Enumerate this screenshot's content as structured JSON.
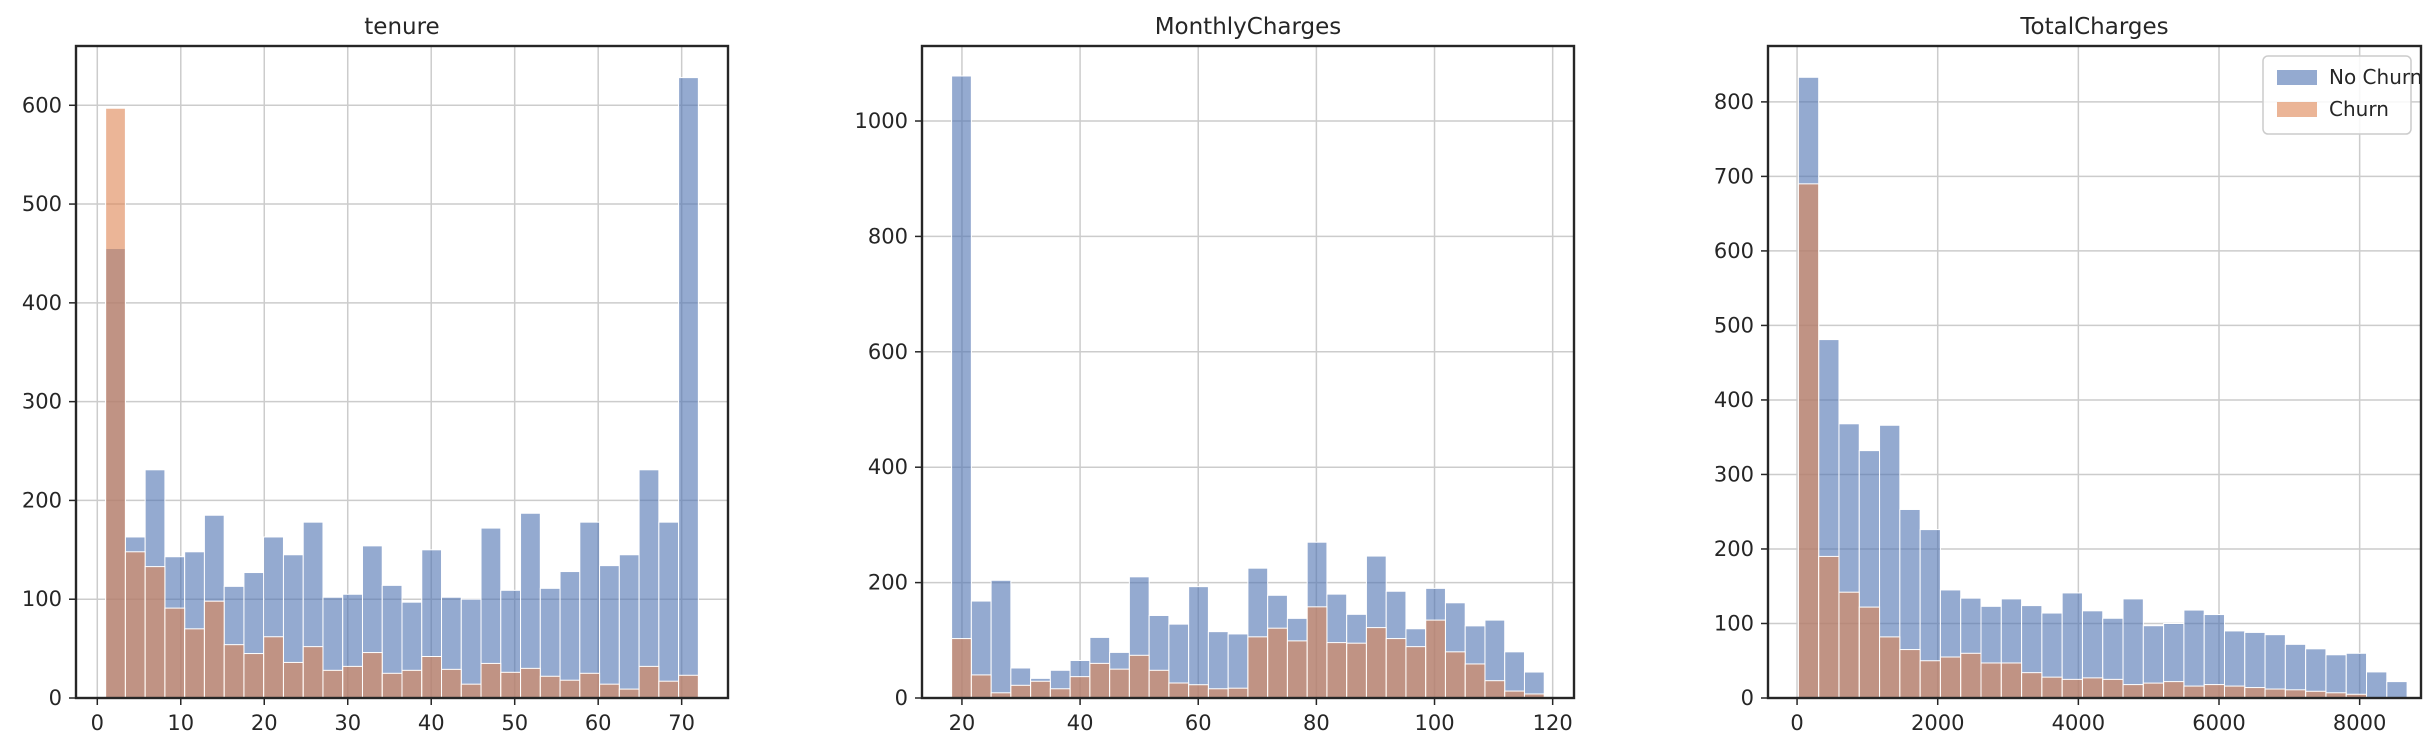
{
  "chart_data": [
    {
      "type": "bar",
      "title": "tenure",
      "xlabel": "",
      "ylabel": "",
      "xlim": [
        -2.55,
        75.55
      ],
      "ylim": [
        0,
        660
      ],
      "xticks": [
        0,
        10,
        20,
        30,
        40,
        50,
        60,
        70
      ],
      "yticks": [
        0,
        100,
        200,
        300,
        400,
        500,
        600
      ],
      "bin_edges": [
        1,
        3.367,
        5.733,
        8.1,
        10.467,
        12.833,
        15.2,
        17.567,
        19.933,
        22.3,
        24.667,
        27.033,
        29.4,
        31.767,
        34.133,
        36.5,
        38.867,
        41.233,
        43.6,
        45.967,
        48.333,
        50.7,
        53.067,
        55.433,
        57.8,
        60.167,
        62.533,
        64.9,
        67.267,
        69.633,
        72
      ],
      "grid": true,
      "legend": null,
      "series": [
        {
          "name": "No Churn",
          "color": "#4c72b0",
          "values": [
            455,
            163,
            231,
            143,
            148,
            185,
            113,
            127,
            163,
            145,
            178,
            102,
            105,
            154,
            114,
            97,
            150,
            102,
            100,
            172,
            109,
            187,
            111,
            128,
            178,
            134,
            145,
            231,
            178,
            628
          ]
        },
        {
          "name": "Churn",
          "color": "#dd8452",
          "values": [
            597,
            148,
            133,
            91,
            70,
            98,
            54,
            45,
            62,
            36,
            52,
            28,
            32,
            46,
            25,
            28,
            42,
            29,
            14,
            35,
            26,
            30,
            22,
            18,
            25,
            14,
            9,
            32,
            17,
            23
          ]
        }
      ]
    },
    {
      "type": "bar",
      "title": "MonthlyCharges",
      "xlabel": "",
      "ylabel": "",
      "xlim": [
        13.24,
        123.61
      ],
      "ylim": [
        0,
        1130
      ],
      "xticks": [
        20,
        40,
        60,
        80,
        100,
        120
      ],
      "yticks": [
        0,
        200,
        400,
        600,
        800,
        1000
      ],
      "bin_edges": [
        18.25,
        21.594,
        24.938,
        28.282,
        31.626,
        34.97,
        38.314,
        41.658,
        45.002,
        48.346,
        51.69,
        55.034,
        58.378,
        61.722,
        65.066,
        68.41,
        71.754,
        75.098,
        78.442,
        81.786,
        85.13,
        88.474,
        91.818,
        95.162,
        98.506,
        101.85,
        105.194,
        108.538,
        111.882,
        115.226,
        118.57
      ],
      "grid": true,
      "legend": null,
      "series": [
        {
          "name": "No Churn",
          "color": "#4c72b0",
          "values": [
            1078,
            168,
            204,
            52,
            34,
            48,
            65,
            105,
            79,
            210,
            143,
            128,
            193,
            115,
            111,
            225,
            178,
            138,
            270,
            180,
            145,
            246,
            185,
            120,
            190,
            165,
            125,
            135,
            80,
            45
          ]
        },
        {
          "name": "Churn",
          "color": "#dd8452",
          "values": [
            103,
            40,
            9,
            22,
            29,
            16,
            37,
            60,
            50,
            74,
            48,
            26,
            23,
            16,
            17,
            106,
            121,
            99,
            158,
            96,
            95,
            122,
            103,
            89,
            135,
            80,
            59,
            30,
            12,
            7
          ]
        }
      ]
    },
    {
      "type": "bar",
      "title": "TotalCharges",
      "xlabel": "",
      "ylabel": "",
      "xlim": [
        -413.37,
        8872.42
      ],
      "ylim": [
        0,
        875
      ],
      "xticks": [
        0,
        2000,
        4000,
        6000,
        8000
      ],
      "yticks": [
        0,
        100,
        200,
        300,
        400,
        500,
        600,
        700,
        800
      ],
      "bin_edges": [
        18.8,
        307.333,
        595.867,
        884.4,
        1172.933,
        1461.467,
        1750,
        2038.533,
        2327.067,
        2615.6,
        2904.133,
        3192.667,
        3481.2,
        3769.733,
        4058.267,
        4346.8,
        4635.333,
        4923.867,
        5212.4,
        5500.933,
        5789.467,
        6078,
        6366.533,
        6655.067,
        6943.6,
        7232.133,
        7520.667,
        7809.2,
        8097.733,
        8386.267,
        8674.8
      ],
      "grid": true,
      "legend": "top-right",
      "series": [
        {
          "name": "No Churn",
          "color": "#4c72b0",
          "values": [
            833,
            481,
            368,
            332,
            366,
            253,
            226,
            145,
            134,
            123,
            133,
            124,
            114,
            141,
            117,
            107,
            133,
            97,
            100,
            118,
            112,
            90,
            88,
            85,
            72,
            66,
            58,
            60,
            35,
            22
          ]
        },
        {
          "name": "Churn",
          "color": "#dd8452",
          "values": [
            690,
            190,
            142,
            122,
            82,
            65,
            50,
            55,
            60,
            47,
            47,
            34,
            28,
            25,
            27,
            25,
            18,
            20,
            22,
            16,
            18,
            16,
            14,
            12,
            11,
            9,
            7,
            5,
            0,
            0
          ]
        }
      ]
    }
  ]
}
